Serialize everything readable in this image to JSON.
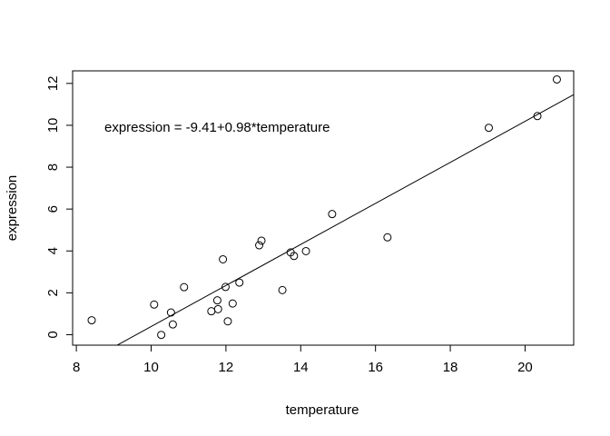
{
  "chart_data": {
    "type": "scatter",
    "title": "",
    "xlabel": "temperature",
    "ylabel": "expression",
    "xlim": [
      7.9,
      21.3
    ],
    "ylim": [
      -0.5,
      12.6
    ],
    "xticks": [
      8,
      10,
      12,
      14,
      16,
      18,
      20
    ],
    "yticks": [
      0,
      2,
      4,
      6,
      8,
      10,
      12
    ],
    "grid": false,
    "points": [
      {
        "x": 8.41,
        "y": 0.69
      },
      {
        "x": 10.08,
        "y": 1.44
      },
      {
        "x": 10.27,
        "y": -0.01
      },
      {
        "x": 10.53,
        "y": 1.06
      },
      {
        "x": 10.58,
        "y": 0.49
      },
      {
        "x": 10.88,
        "y": 2.27
      },
      {
        "x": 11.61,
        "y": 1.12
      },
      {
        "x": 11.77,
        "y": 1.64
      },
      {
        "x": 11.79,
        "y": 1.22
      },
      {
        "x": 11.92,
        "y": 3.6
      },
      {
        "x": 11.99,
        "y": 2.28
      },
      {
        "x": 12.05,
        "y": 0.64
      },
      {
        "x": 12.18,
        "y": 1.49
      },
      {
        "x": 12.36,
        "y": 2.49
      },
      {
        "x": 12.89,
        "y": 4.27
      },
      {
        "x": 12.95,
        "y": 4.49
      },
      {
        "x": 13.51,
        "y": 2.13
      },
      {
        "x": 13.73,
        "y": 3.93
      },
      {
        "x": 13.82,
        "y": 3.76
      },
      {
        "x": 14.14,
        "y": 3.99
      },
      {
        "x": 14.84,
        "y": 5.76
      },
      {
        "x": 16.32,
        "y": 4.65
      },
      {
        "x": 19.03,
        "y": 9.88
      },
      {
        "x": 20.33,
        "y": 10.44
      },
      {
        "x": 20.85,
        "y": 12.19
      }
    ],
    "regression": {
      "intercept": -9.41,
      "slope": 0.98
    },
    "annotation": "expression = -9.41+0.98*temperature"
  }
}
